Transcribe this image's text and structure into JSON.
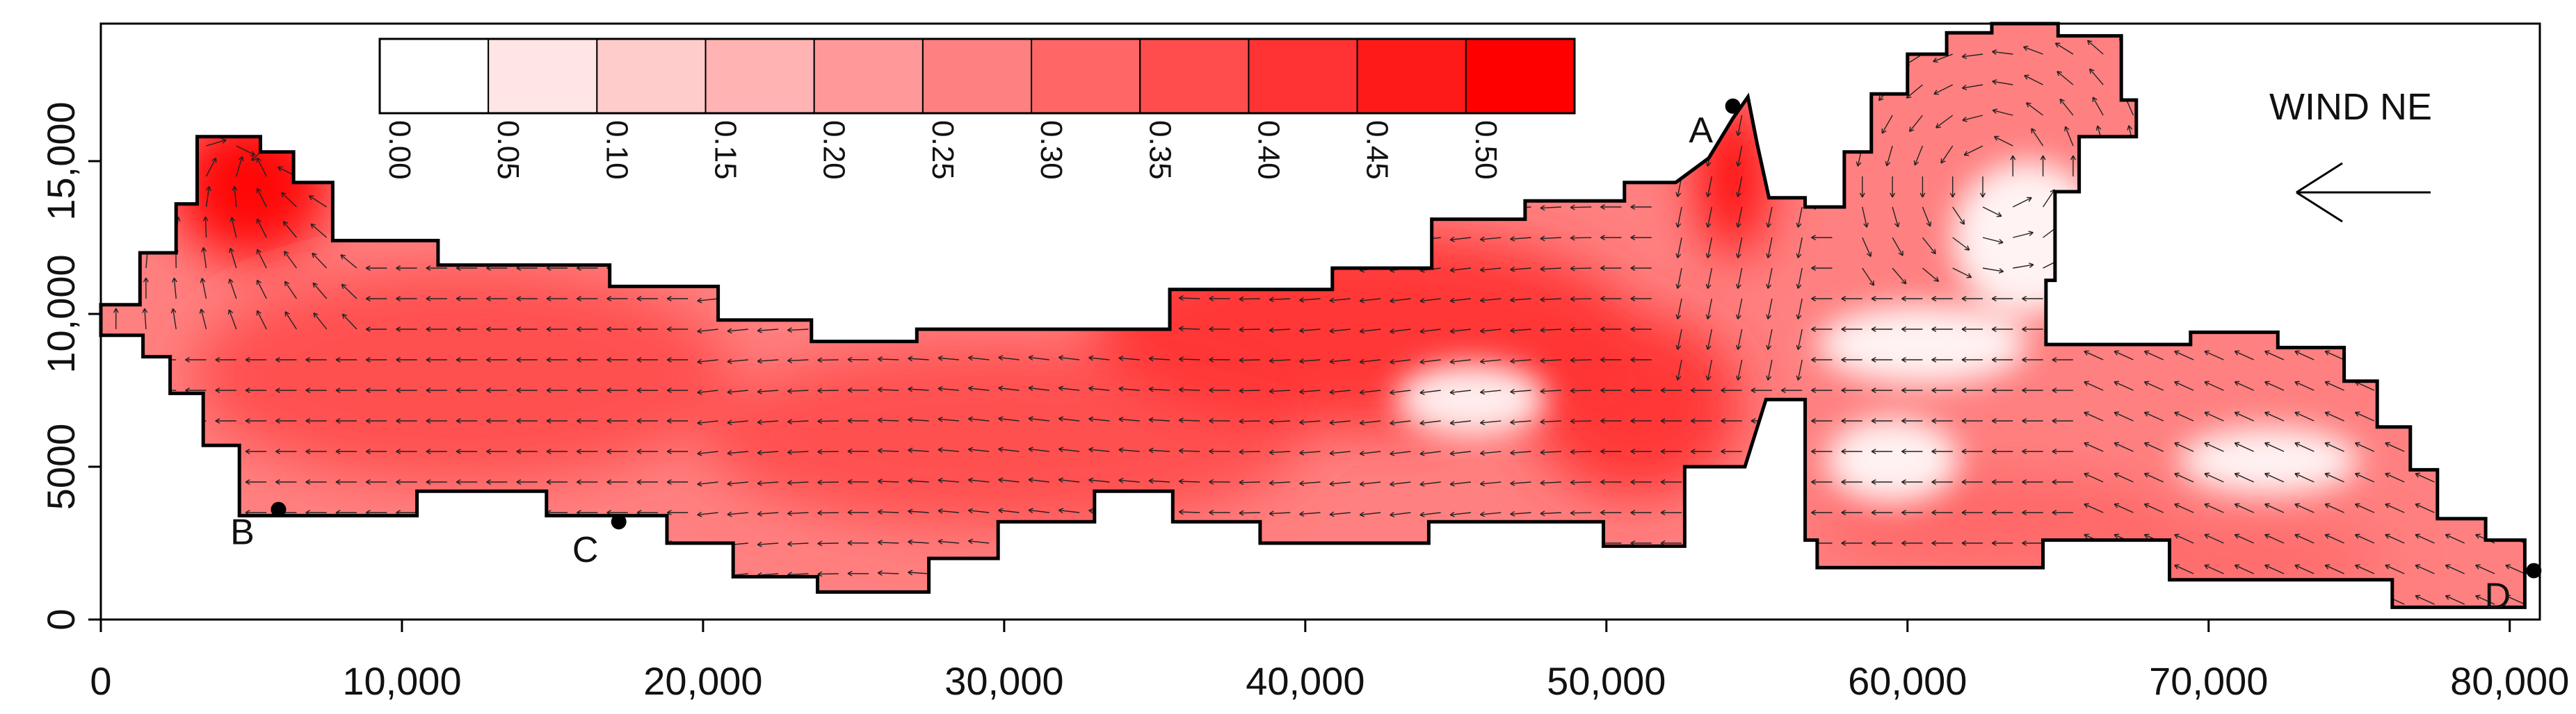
{
  "chart_data": {
    "type": "heatmap",
    "title": "",
    "xlabel": "",
    "ylabel": "",
    "xlim": [
      0,
      81000
    ],
    "ylim": [
      0,
      19500
    ],
    "x_ticks": [
      {
        "value": 0,
        "label": "0"
      },
      {
        "value": 10000,
        "label": "10,000"
      },
      {
        "value": 20000,
        "label": "20,000"
      },
      {
        "value": 30000,
        "label": "30,000"
      },
      {
        "value": 40000,
        "label": "40,000"
      },
      {
        "value": 50000,
        "label": "50,000"
      },
      {
        "value": 60000,
        "label": "60,000"
      },
      {
        "value": 70000,
        "label": "70,000"
      },
      {
        "value": 80000,
        "label": "80,000"
      }
    ],
    "y_ticks": [
      {
        "value": 0,
        "label": "0"
      },
      {
        "value": 5000,
        "label": "5000"
      },
      {
        "value": 10000,
        "label": "10,000"
      },
      {
        "value": 15000,
        "label": "15,000"
      }
    ],
    "colorbar": {
      "levels": [
        "0.00",
        "0.05",
        "0.10",
        "0.15",
        "0.20",
        "0.25",
        "0.30",
        "0.35",
        "0.40",
        "0.45",
        "0.50"
      ],
      "colors": [
        "#ffffff",
        "#ffe5e5",
        "#ffcccc",
        "#ffb3b3",
        "#ff9999",
        "#ff8080",
        "#ff6666",
        "#ff4d4d",
        "#ff3333",
        "#ff1a1a",
        "#ff0000"
      ]
    },
    "annotation": "WIND NE",
    "wind_direction_arrow": "pointing left",
    "points": [
      {
        "label": "A",
        "x": 54200,
        "y": 16800
      },
      {
        "label": "B",
        "x": 5900,
        "y": 3600
      },
      {
        "label": "C",
        "x": 17200,
        "y": 3200
      },
      {
        "label": "D",
        "x": 80800,
        "y": 1600
      }
    ],
    "domain_outline": [
      [
        0,
        9300
      ],
      [
        1400,
        9300
      ],
      [
        1400,
        8600
      ],
      [
        2300,
        8600
      ],
      [
        2300,
        7400
      ],
      [
        3400,
        7400
      ],
      [
        3400,
        5700
      ],
      [
        4600,
        5700
      ],
      [
        4600,
        3400
      ],
      [
        10500,
        3400
      ],
      [
        10500,
        4200
      ],
      [
        14800,
        4200
      ],
      [
        14800,
        3400
      ],
      [
        18800,
        3400
      ],
      [
        18800,
        2500
      ],
      [
        21000,
        2500
      ],
      [
        21000,
        1400
      ],
      [
        23800,
        1400
      ],
      [
        23800,
        900
      ],
      [
        27500,
        900
      ],
      [
        27500,
        2000
      ],
      [
        29800,
        2000
      ],
      [
        29800,
        3200
      ],
      [
        33000,
        3200
      ],
      [
        33000,
        4200
      ],
      [
        35600,
        4200
      ],
      [
        35600,
        3200
      ],
      [
        38500,
        3200
      ],
      [
        38500,
        2500
      ],
      [
        44100,
        2500
      ],
      [
        44100,
        3200
      ],
      [
        49900,
        3200
      ],
      [
        49900,
        2400
      ],
      [
        52600,
        2400
      ],
      [
        52600,
        5000
      ],
      [
        54600,
        5000
      ],
      [
        55300,
        7200
      ],
      [
        56600,
        7200
      ],
      [
        56600,
        2600
      ],
      [
        57000,
        2600
      ],
      [
        57000,
        1700
      ],
      [
        64500,
        1700
      ],
      [
        64500,
        2600
      ],
      [
        68700,
        2600
      ],
      [
        68700,
        1300
      ],
      [
        76100,
        1300
      ],
      [
        76100,
        400
      ],
      [
        80500,
        400
      ],
      [
        80500,
        2600
      ],
      [
        79200,
        2600
      ],
      [
        79200,
        3300
      ],
      [
        77600,
        3300
      ],
      [
        77600,
        4900
      ],
      [
        76700,
        4900
      ],
      [
        76700,
        6300
      ],
      [
        75600,
        6300
      ],
      [
        75600,
        7800
      ],
      [
        74500,
        7800
      ],
      [
        74500,
        8900
      ],
      [
        72300,
        8900
      ],
      [
        72300,
        9400
      ],
      [
        69400,
        9400
      ],
      [
        69400,
        9000
      ],
      [
        64600,
        9000
      ],
      [
        64600,
        11100
      ],
      [
        64900,
        11100
      ],
      [
        64900,
        14000
      ],
      [
        65700,
        14000
      ],
      [
        65700,
        15800
      ],
      [
        67600,
        15800
      ],
      [
        67600,
        17000
      ],
      [
        67100,
        17000
      ],
      [
        67100,
        19100
      ],
      [
        65000,
        19100
      ],
      [
        65000,
        19500
      ],
      [
        62800,
        19500
      ],
      [
        62800,
        19200
      ],
      [
        61300,
        19200
      ],
      [
        61300,
        18500
      ],
      [
        60000,
        18500
      ],
      [
        60000,
        17200
      ],
      [
        58800,
        17200
      ],
      [
        58800,
        15300
      ],
      [
        57900,
        15300
      ],
      [
        57900,
        13500
      ],
      [
        56600,
        13500
      ],
      [
        56600,
        13800
      ],
      [
        55400,
        13800
      ],
      [
        55000,
        15600
      ],
      [
        54700,
        17100
      ],
      [
        54200,
        16400
      ],
      [
        53400,
        15100
      ],
      [
        52300,
        14300
      ],
      [
        50600,
        14300
      ],
      [
        50600,
        13700
      ],
      [
        47300,
        13700
      ],
      [
        47300,
        13100
      ],
      [
        44200,
        13100
      ],
      [
        44200,
        11500
      ],
      [
        40900,
        11500
      ],
      [
        40900,
        10800
      ],
      [
        35500,
        10800
      ],
      [
        35500,
        9500
      ],
      [
        27100,
        9500
      ],
      [
        27100,
        9100
      ],
      [
        23600,
        9100
      ],
      [
        23600,
        9800
      ],
      [
        20500,
        9800
      ],
      [
        20500,
        10900
      ],
      [
        16900,
        10900
      ],
      [
        16900,
        11600
      ],
      [
        11200,
        11600
      ],
      [
        11200,
        12400
      ],
      [
        7700,
        12400
      ],
      [
        7700,
        14300
      ],
      [
        6400,
        14300
      ],
      [
        6400,
        15300
      ],
      [
        5300,
        15300
      ],
      [
        5300,
        15800
      ],
      [
        3200,
        15800
      ],
      [
        3200,
        13600
      ],
      [
        2500,
        13600
      ],
      [
        2500,
        12000
      ],
      [
        1300,
        12000
      ],
      [
        1300,
        10300
      ],
      [
        0,
        10300
      ]
    ],
    "hotspots": [
      {
        "x": 5000,
        "y": 14200,
        "rx": 2600,
        "ry": 2400,
        "value": 0.5
      },
      {
        "x": 54200,
        "y": 14500,
        "rx": 1100,
        "ry": 2600,
        "value": 0.5
      },
      {
        "x": 12000,
        "y": 8000,
        "rx": 9000,
        "ry": 3500,
        "value": 0.35
      },
      {
        "x": 30000,
        "y": 6000,
        "rx": 10000,
        "ry": 3000,
        "value": 0.35
      },
      {
        "x": 42000,
        "y": 9500,
        "rx": 9000,
        "ry": 3200,
        "value": 0.4
      },
      {
        "x": 51000,
        "y": 7000,
        "rx": 3500,
        "ry": 3000,
        "value": 0.4
      },
      {
        "x": 63000,
        "y": 3200,
        "rx": 6000,
        "ry": 1500,
        "value": 0.3
      },
      {
        "x": 71000,
        "y": 2000,
        "rx": 5000,
        "ry": 1000,
        "value": 0.3
      },
      {
        "x": 69000,
        "y": 7800,
        "rx": 4500,
        "ry": 1200,
        "value": 0.25
      }
    ],
    "calm_zones": [
      {
        "x": 60500,
        "y": 9000,
        "rx": 3500,
        "ry": 1300
      },
      {
        "x": 64000,
        "y": 12500,
        "rx": 2500,
        "ry": 2500
      },
      {
        "x": 45500,
        "y": 7200,
        "rx": 2500,
        "ry": 1200
      },
      {
        "x": 72000,
        "y": 5200,
        "rx": 3000,
        "ry": 1100
      },
      {
        "x": 59500,
        "y": 5200,
        "rx": 2200,
        "ry": 1400
      }
    ],
    "grid": false
  }
}
